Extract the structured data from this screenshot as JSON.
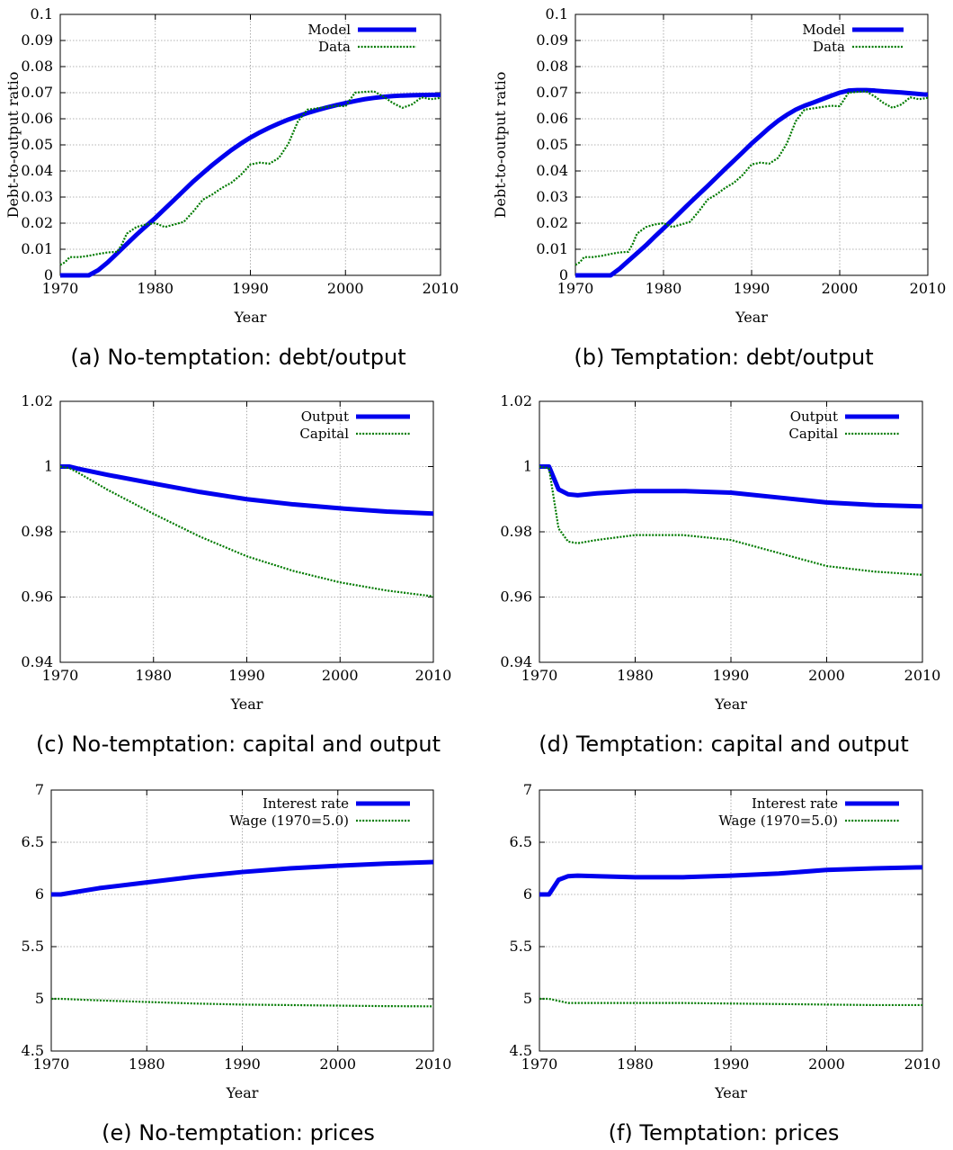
{
  "chart_data": [
    {
      "id": "a",
      "type": "line",
      "caption": "(a) No-temptation: debt/output",
      "xlabel": "Year",
      "ylabel": "Debt-to-output ratio",
      "xlim": [
        1970,
        2010
      ],
      "ylim": [
        0,
        0.1
      ],
      "xticks": [
        "1970",
        "1980",
        "1990",
        "2000",
        "2010"
      ],
      "yticks": [
        "0",
        "0.01",
        "0.02",
        "0.03",
        "0.04",
        "0.05",
        "0.06",
        "0.07",
        "0.08",
        "0.09",
        "0.1"
      ],
      "grid": true,
      "legend": "top-right",
      "series": [
        {
          "name": "Model",
          "color": "#0000ee",
          "style": "solid",
          "x": [
            1970,
            1971,
            1972,
            1973,
            1974,
            1975,
            1976,
            1977,
            1978,
            1979,
            1980,
            1981,
            1982,
            1983,
            1984,
            1985,
            1986,
            1987,
            1988,
            1989,
            1990,
            1991,
            1992,
            1993,
            1994,
            1995,
            1996,
            1997,
            1998,
            1999,
            2000,
            2001,
            2002,
            2003,
            2004,
            2005,
            2006,
            2007,
            2008,
            2009,
            2010
          ],
          "y": [
            0,
            0,
            0,
            0,
            0.002,
            0.005,
            0.0085,
            0.012,
            0.0155,
            0.0188,
            0.022,
            0.0255,
            0.029,
            0.0325,
            0.036,
            0.0392,
            0.0423,
            0.0452,
            0.048,
            0.0505,
            0.0528,
            0.0548,
            0.0566,
            0.0582,
            0.0597,
            0.061,
            0.0622,
            0.0633,
            0.0643,
            0.0652,
            0.066,
            0.0668,
            0.0675,
            0.068,
            0.0684,
            0.0687,
            0.0689,
            0.069,
            0.0691,
            0.0692,
            0.0692
          ]
        },
        {
          "name": "Data",
          "color": "#007a00",
          "style": "dotted",
          "x": [
            1970,
            1970.5,
            1971,
            1972,
            1973,
            1974,
            1975,
            1976,
            1976.5,
            1977,
            1978,
            1979,
            1980,
            1981,
            1982,
            1983,
            1984,
            1985,
            1986,
            1987,
            1988,
            1989,
            1990,
            1991,
            1992,
            1993,
            1994,
            1995,
            1996,
            1997,
            1998,
            1999,
            2000,
            2001,
            2002,
            2003,
            2004,
            2005,
            2006,
            2007,
            2008,
            2009,
            2010
          ],
          "y": [
            0.004,
            0.005,
            0.007,
            0.007,
            0.0075,
            0.0082,
            0.0088,
            0.009,
            0.012,
            0.016,
            0.0185,
            0.0195,
            0.02,
            0.0185,
            0.0195,
            0.0205,
            0.0245,
            0.029,
            0.031,
            0.0335,
            0.0355,
            0.0385,
            0.0425,
            0.0432,
            0.0428,
            0.045,
            0.0505,
            0.059,
            0.0635,
            0.064,
            0.0645,
            0.065,
            0.0648,
            0.07,
            0.0703,
            0.0705,
            0.0685,
            0.066,
            0.0642,
            0.0655,
            0.0682,
            0.0675,
            0.068
          ]
        }
      ]
    },
    {
      "id": "b",
      "type": "line",
      "caption": "(b) Temptation: debt/output",
      "xlabel": "Year",
      "ylabel": "Debt-to-output ratio",
      "xlim": [
        1970,
        2010
      ],
      "ylim": [
        0,
        0.1
      ],
      "xticks": [
        "1970",
        "1980",
        "1990",
        "2000",
        "2010"
      ],
      "yticks": [
        "0",
        "0.01",
        "0.02",
        "0.03",
        "0.04",
        "0.05",
        "0.06",
        "0.07",
        "0.08",
        "0.09",
        "0.1"
      ],
      "grid": true,
      "legend": "top-right",
      "series": [
        {
          "name": "Model",
          "color": "#0000ee",
          "style": "solid",
          "x": [
            1970,
            1971,
            1972,
            1973,
            1974,
            1975,
            1976,
            1977,
            1978,
            1979,
            1980,
            1981,
            1982,
            1983,
            1984,
            1985,
            1986,
            1987,
            1988,
            1989,
            1990,
            1991,
            1992,
            1993,
            1994,
            1995,
            1996,
            1997,
            1998,
            1999,
            2000,
            2001,
            2002,
            2003,
            2004,
            2005,
            2006,
            2007,
            2008,
            2009,
            2010
          ],
          "y": [
            0,
            0,
            0,
            0,
            0,
            0.0025,
            0.0055,
            0.0085,
            0.0115,
            0.0148,
            0.018,
            0.0212,
            0.0245,
            0.0278,
            0.031,
            0.0342,
            0.0375,
            0.0408,
            0.044,
            0.0472,
            0.0505,
            0.0535,
            0.0565,
            0.0592,
            0.0615,
            0.0635,
            0.065,
            0.0662,
            0.0675,
            0.0688,
            0.07,
            0.0708,
            0.071,
            0.071,
            0.0708,
            0.0705,
            0.0703,
            0.0701,
            0.0698,
            0.0695,
            0.0692
          ]
        },
        {
          "name": "Data",
          "color": "#007a00",
          "style": "dotted",
          "x": [
            1970,
            1970.5,
            1971,
            1972,
            1973,
            1974,
            1975,
            1976,
            1976.5,
            1977,
            1978,
            1979,
            1980,
            1981,
            1982,
            1983,
            1984,
            1985,
            1986,
            1987,
            1988,
            1989,
            1990,
            1991,
            1992,
            1993,
            1994,
            1995,
            1996,
            1997,
            1998,
            1999,
            2000,
            2001,
            2002,
            2003,
            2004,
            2005,
            2006,
            2007,
            2008,
            2009,
            2010
          ],
          "y": [
            0.004,
            0.005,
            0.007,
            0.007,
            0.0075,
            0.0082,
            0.0088,
            0.009,
            0.012,
            0.016,
            0.0185,
            0.0195,
            0.02,
            0.0185,
            0.0195,
            0.0205,
            0.0245,
            0.029,
            0.031,
            0.0335,
            0.0355,
            0.0385,
            0.0425,
            0.0432,
            0.0428,
            0.045,
            0.0505,
            0.059,
            0.0635,
            0.064,
            0.0645,
            0.065,
            0.0648,
            0.07,
            0.0703,
            0.0705,
            0.0685,
            0.066,
            0.0642,
            0.0655,
            0.0682,
            0.0675,
            0.068
          ]
        }
      ]
    },
    {
      "id": "c",
      "type": "line",
      "caption": "(c) No-temptation: capital and output",
      "xlabel": "Year",
      "ylabel": "",
      "xlim": [
        1970,
        2010
      ],
      "ylim": [
        0.94,
        1.02
      ],
      "xticks": [
        "1970",
        "1980",
        "1990",
        "2000",
        "2010"
      ],
      "yticks": [
        "0.94",
        "0.96",
        "0.98",
        "1",
        "1.02"
      ],
      "grid": true,
      "legend": "top-right",
      "series": [
        {
          "name": "Output",
          "color": "#0000ee",
          "style": "solid",
          "x": [
            1970,
            1971,
            1972,
            1975,
            1980,
            1985,
            1990,
            1995,
            2000,
            2005,
            2010
          ],
          "y": [
            1.0,
            1.0,
            0.9993,
            0.9975,
            0.9948,
            0.9922,
            0.99,
            0.9884,
            0.9872,
            0.9862,
            0.9856
          ]
        },
        {
          "name": "Capital",
          "color": "#007a00",
          "style": "dotted",
          "x": [
            1970,
            1971,
            1972,
            1975,
            1980,
            1985,
            1990,
            1995,
            2000,
            2005,
            2010
          ],
          "y": [
            1.0,
            0.9995,
            0.998,
            0.993,
            0.9855,
            0.9785,
            0.9725,
            0.968,
            0.9645,
            0.962,
            0.9602
          ]
        }
      ]
    },
    {
      "id": "d",
      "type": "line",
      "caption": "(d) Temptation: capital and output",
      "xlabel": "Year",
      "ylabel": "",
      "xlim": [
        1970,
        2010
      ],
      "ylim": [
        0.94,
        1.02
      ],
      "xticks": [
        "1970",
        "1980",
        "1990",
        "2000",
        "2010"
      ],
      "yticks": [
        "0.94",
        "0.96",
        "0.98",
        "1",
        "1.02"
      ],
      "grid": true,
      "legend": "top-right",
      "series": [
        {
          "name": "Output",
          "color": "#0000ee",
          "style": "solid",
          "x": [
            1970,
            1971,
            1972,
            1973,
            1974,
            1976,
            1980,
            1985,
            1990,
            1995,
            2000,
            2005,
            2010
          ],
          "y": [
            1.0,
            1.0,
            0.993,
            0.9915,
            0.9912,
            0.9918,
            0.9925,
            0.9925,
            0.992,
            0.9905,
            0.989,
            0.9882,
            0.9878
          ]
        },
        {
          "name": "Capital",
          "color": "#007a00",
          "style": "dotted",
          "x": [
            1970,
            1971,
            1972,
            1973,
            1974,
            1976,
            1980,
            1985,
            1990,
            1995,
            2000,
            2005,
            2010
          ],
          "y": [
            1.0,
            0.9995,
            0.981,
            0.977,
            0.9765,
            0.9775,
            0.979,
            0.979,
            0.9775,
            0.9735,
            0.9695,
            0.9678,
            0.9668
          ]
        }
      ]
    },
    {
      "id": "e",
      "type": "line",
      "caption": "(e) No-temptation: prices",
      "xlabel": "Year",
      "ylabel": "",
      "xlim": [
        1970,
        2010
      ],
      "ylim": [
        4.5,
        7
      ],
      "xticks": [
        "1970",
        "1980",
        "1990",
        "2000",
        "2010"
      ],
      "yticks": [
        "4.5",
        "5",
        "5.5",
        "6",
        "6.5",
        "7"
      ],
      "grid": true,
      "legend": "top-right",
      "series": [
        {
          "name": "Interest rate",
          "color": "#0000ee",
          "style": "solid",
          "x": [
            1970,
            1971,
            1972,
            1975,
            1980,
            1985,
            1990,
            1995,
            2000,
            2005,
            2010
          ],
          "y": [
            6.0,
            6.0,
            6.015,
            6.06,
            6.115,
            6.17,
            6.215,
            6.25,
            6.275,
            6.295,
            6.31
          ]
        },
        {
          "name": "Wage (1970=5.0)",
          "color": "#007a00",
          "style": "dotted",
          "x": [
            1970,
            1971,
            1975,
            1980,
            1985,
            1990,
            1995,
            2000,
            2005,
            2010
          ],
          "y": [
            5.0,
            5.0,
            4.985,
            4.97,
            4.955,
            4.945,
            4.94,
            4.935,
            4.93,
            4.928
          ]
        }
      ]
    },
    {
      "id": "f",
      "type": "line",
      "caption": "(f) Temptation: prices",
      "xlabel": "Year",
      "ylabel": "",
      "xlim": [
        1970,
        2010
      ],
      "ylim": [
        4.5,
        7
      ],
      "xticks": [
        "1970",
        "1980",
        "1990",
        "2000",
        "2010"
      ],
      "yticks": [
        "4.5",
        "5",
        "5.5",
        "6",
        "6.5",
        "7"
      ],
      "grid": true,
      "legend": "top-right",
      "series": [
        {
          "name": "Interest rate",
          "color": "#0000ee",
          "style": "solid",
          "x": [
            1970,
            1971,
            1972,
            1973,
            1974,
            1976,
            1980,
            1985,
            1990,
            1995,
            2000,
            2005,
            2010
          ],
          "y": [
            6.0,
            6.0,
            6.14,
            6.175,
            6.18,
            6.175,
            6.165,
            6.165,
            6.18,
            6.2,
            6.235,
            6.25,
            6.26
          ]
        },
        {
          "name": "Wage (1970=5.0)",
          "color": "#007a00",
          "style": "dotted",
          "x": [
            1970,
            1971,
            1972,
            1973,
            1975,
            1980,
            1985,
            1990,
            1995,
            2000,
            2005,
            2010
          ],
          "y": [
            5.0,
            5.0,
            4.98,
            4.96,
            4.96,
            4.96,
            4.96,
            4.955,
            4.95,
            4.945,
            4.94,
            4.94
          ]
        }
      ]
    }
  ]
}
